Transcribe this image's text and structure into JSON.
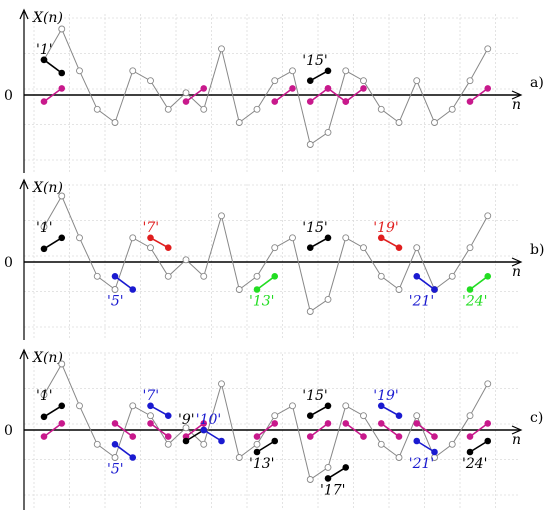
{
  "panels": [
    {
      "id": "a",
      "y_axis_label": "X(n)",
      "x_axis_label": "n",
      "zero_label": "0",
      "panel_label": "a)",
      "signal": [
        1.6,
        3.0,
        1.1,
        -0.65,
        -1.25,
        1.1,
        0.65,
        -0.65,
        0.1,
        -0.65,
        2.1,
        -1.25,
        -0.65,
        0.65,
        1.1,
        -2.25,
        -1.7,
        1.1,
        0.65,
        -0.65,
        -1.25,
        0.65,
        -1.25,
        -0.65,
        0.65,
        2.1
      ],
      "segments": [
        {
          "from": 0,
          "to": 1,
          "values": [
            1.6,
            1.0
          ],
          "color": "black",
          "label": "'1'",
          "label_color": "black"
        },
        {
          "from": 0,
          "to": 1,
          "values": [
            -0.3,
            0.3
          ],
          "color": "magenta"
        },
        {
          "from": 8,
          "to": 9,
          "values": [
            -0.3,
            0.3
          ],
          "color": "magenta"
        },
        {
          "from": 13,
          "to": 14,
          "values": [
            -0.3,
            0.3
          ],
          "color": "magenta"
        },
        {
          "from": 15,
          "to": 16,
          "values": [
            -0.3,
            0.3
          ],
          "color": "magenta"
        },
        {
          "from": 15,
          "to": 16,
          "values": [
            0.65,
            1.1
          ],
          "color": "black",
          "label": "'15'",
          "label_color": "black"
        },
        {
          "from": 16,
          "to": 17,
          "values": [
            0.3,
            -0.3
          ],
          "color": "magenta"
        },
        {
          "from": 17,
          "to": 18,
          "values": [
            -0.3,
            0.3
          ],
          "color": "magenta"
        },
        {
          "from": 24,
          "to": 25,
          "values": [
            -0.3,
            0.3
          ],
          "color": "magenta"
        }
      ]
    },
    {
      "id": "b",
      "y_axis_label": "X(n)",
      "x_axis_label": "n",
      "zero_label": "0",
      "panel_label": "b)",
      "signal": [
        1.6,
        3.0,
        1.1,
        -0.65,
        -1.25,
        1.1,
        0.65,
        -0.65,
        0.1,
        -0.65,
        2.1,
        -1.25,
        -0.65,
        0.65,
        1.1,
        -2.25,
        -1.7,
        1.1,
        0.65,
        -0.65,
        -1.25,
        0.65,
        -1.25,
        -0.65,
        0.65,
        2.1
      ],
      "segments": [
        {
          "from": 0,
          "to": 1,
          "values": [
            0.6,
            1.1
          ],
          "color": "black",
          "label": "'1'",
          "label_color": "black"
        },
        {
          "from": 4,
          "to": 5,
          "values": [
            -0.65,
            -1.25
          ],
          "color": "blue",
          "label": "'5'",
          "label_color": "blue"
        },
        {
          "from": 6,
          "to": 7,
          "values": [
            1.1,
            0.65
          ],
          "color": "red",
          "label": "'7'",
          "label_color": "red"
        },
        {
          "from": 12,
          "to": 13,
          "values": [
            -1.25,
            -0.65
          ],
          "color": "lime",
          "label": "'13'",
          "label_color": "lime"
        },
        {
          "from": 15,
          "to": 16,
          "values": [
            0.65,
            1.1
          ],
          "color": "black",
          "label": "'15'",
          "label_color": "black"
        },
        {
          "from": 19,
          "to": 20,
          "values": [
            1.1,
            0.65
          ],
          "color": "red",
          "label": "'19'",
          "label_color": "red"
        },
        {
          "from": 21,
          "to": 22,
          "values": [
            -0.65,
            -1.25
          ],
          "color": "blue",
          "label": "'21'",
          "label_color": "blue"
        },
        {
          "from": 24,
          "to": 25,
          "values": [
            -1.25,
            -0.65
          ],
          "color": "lime",
          "label": "'24'",
          "label_color": "lime"
        }
      ]
    },
    {
      "id": "c",
      "y_axis_label": "X(n)",
      "x_axis_label": "n",
      "zero_label": "0",
      "panel_label": "c)",
      "signal": [
        1.6,
        3.0,
        1.1,
        -0.65,
        -1.25,
        1.1,
        0.65,
        -0.65,
        0.1,
        -0.65,
        2.1,
        -1.25,
        -0.65,
        0.65,
        1.1,
        -2.25,
        -1.7,
        1.1,
        0.65,
        -0.65,
        -1.25,
        0.65,
        -1.25,
        -0.65,
        0.65,
        2.1
      ],
      "segments": [
        {
          "from": 0,
          "to": 1,
          "values": [
            0.6,
            1.1
          ],
          "color": "black",
          "label": "'1'",
          "label_color": "black"
        },
        {
          "from": 0,
          "to": 1,
          "values": [
            -0.3,
            0.3
          ],
          "color": "magenta"
        },
        {
          "from": 4,
          "to": 5,
          "values": [
            0.3,
            -0.3
          ],
          "color": "magenta"
        },
        {
          "from": 4,
          "to": 5,
          "values": [
            -0.65,
            -1.25
          ],
          "color": "blue",
          "label": "'5'",
          "label_color": "blue"
        },
        {
          "from": 6,
          "to": 7,
          "values": [
            1.1,
            0.65
          ],
          "color": "blue",
          "label": "'7'",
          "label_color": "blue"
        },
        {
          "from": 6,
          "to": 7,
          "values": [
            0.3,
            -0.3
          ],
          "color": "magenta"
        },
        {
          "from": 8,
          "to": 9,
          "values": [
            -0.3,
            0.3
          ],
          "color": "magenta"
        },
        {
          "from": 8,
          "to": 9,
          "values": [
            -0.5,
            0.0
          ],
          "color": "black",
          "label": "'9'",
          "label_color": "black"
        },
        {
          "from": 9,
          "to": 10,
          "values": [
            0.0,
            -0.5
          ],
          "color": "blue",
          "label": "'10'",
          "label_color": "blue"
        },
        {
          "from": 12,
          "to": 13,
          "values": [
            -0.3,
            0.3
          ],
          "color": "magenta"
        },
        {
          "from": 12,
          "to": 13,
          "values": [
            -1.0,
            -0.5
          ],
          "color": "black",
          "label": "'13'",
          "label_color": "black"
        },
        {
          "from": 15,
          "to": 16,
          "values": [
            0.65,
            1.1
          ],
          "color": "black",
          "label": "'15'",
          "label_color": "black"
        },
        {
          "from": 15,
          "to": 16,
          "values": [
            -0.3,
            0.3
          ],
          "color": "magenta"
        },
        {
          "from": 16,
          "to": 17,
          "values": [
            -2.2,
            -1.7
          ],
          "color": "black",
          "label": "'17'",
          "label_color": "black"
        },
        {
          "from": 17,
          "to": 18,
          "values": [
            0.3,
            -0.3
          ],
          "color": "magenta"
        },
        {
          "from": 19,
          "to": 20,
          "values": [
            1.1,
            0.65
          ],
          "color": "blue",
          "label": "'19'",
          "label_color": "blue"
        },
        {
          "from": 19,
          "to": 20,
          "values": [
            0.3,
            -0.3
          ],
          "color": "magenta"
        },
        {
          "from": 21,
          "to": 22,
          "values": [
            -0.5,
            -1.0
          ],
          "color": "blue",
          "label": "'21'",
          "label_color": "blue"
        },
        {
          "from": 21,
          "to": 22,
          "values": [
            0.3,
            -0.3
          ],
          "color": "magenta"
        },
        {
          "from": 24,
          "to": 25,
          "values": [
            -1.0,
            -0.5
          ],
          "color": "black",
          "label": "'24'",
          "label_color": "black"
        },
        {
          "from": 24,
          "to": 25,
          "values": [
            -0.3,
            0.3
          ],
          "color": "magenta"
        }
      ]
    }
  ],
  "colors": {
    "signal_line": "#888888",
    "grid": "#dcdcdc",
    "axis": "#000000",
    "black": "#000000",
    "magenta": "#c8198c",
    "blue": "#1a1ad0",
    "red": "#e01e1e",
    "lime": "#22dd22"
  }
}
